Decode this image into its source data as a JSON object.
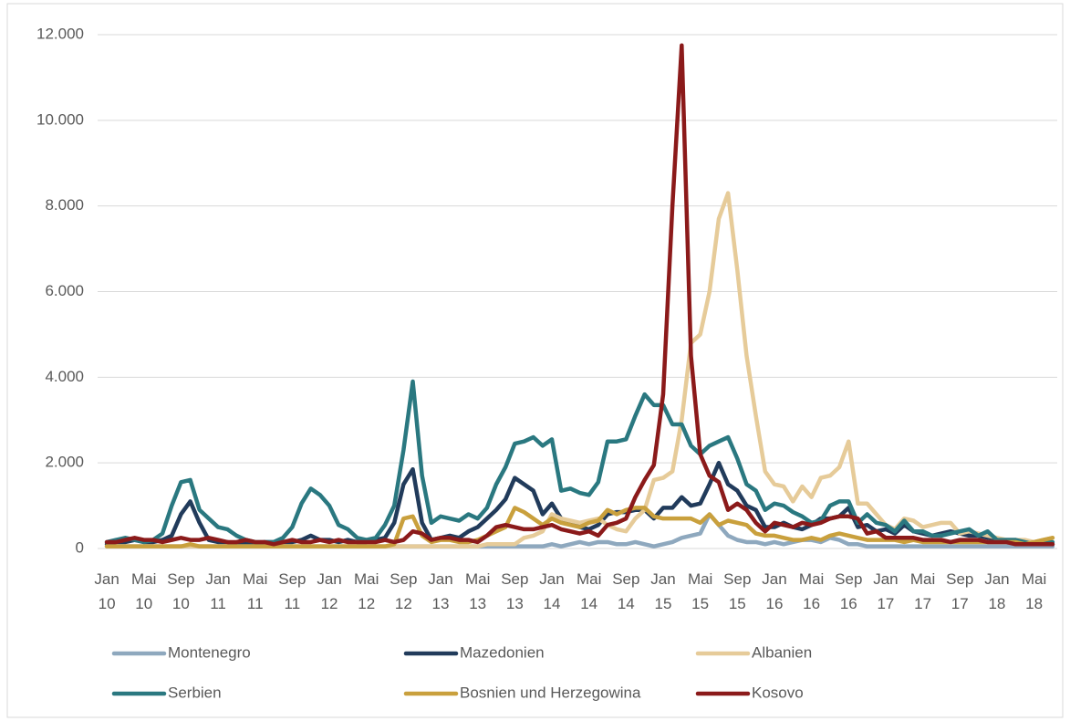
{
  "chart_data": {
    "type": "line",
    "categories": [
      "Jan 10",
      null,
      null,
      null,
      "Mai 10",
      null,
      null,
      null,
      "Sep 10",
      null,
      null,
      null,
      "Jan 11",
      null,
      null,
      null,
      "Mai 11",
      null,
      null,
      null,
      "Sep 11",
      null,
      null,
      null,
      "Jan 12",
      null,
      null,
      null,
      "Mai 12",
      null,
      null,
      null,
      "Sep 12",
      null,
      null,
      null,
      "Jan 13",
      null,
      null,
      null,
      "Mai 13",
      null,
      null,
      null,
      "Sep 13",
      null,
      null,
      null,
      "Jan 14",
      null,
      null,
      null,
      "Mai 14",
      null,
      null,
      null,
      "Sep 14",
      null,
      null,
      null,
      "Jan 15",
      null,
      null,
      null,
      "Mai 15",
      null,
      null,
      null,
      "Sep 15",
      null,
      null,
      null,
      "Jan 16",
      null,
      null,
      null,
      "Mai 16",
      null,
      null,
      null,
      "Sep 16",
      null,
      null,
      null,
      "Jan 17",
      null,
      null,
      null,
      "Mai 17",
      null,
      null,
      null,
      "Sep 17",
      null,
      null,
      null,
      "Jan 18",
      null,
      null,
      null,
      "Mai 18",
      null,
      null
    ],
    "ylim": [
      0,
      12000
    ],
    "yticks": [
      0,
      {
        "value": 2000,
        "label": "2.000"
      },
      {
        "value": 4000,
        "label": "4.000"
      },
      {
        "value": 6000,
        "label": "6.000"
      },
      {
        "value": 8000,
        "label": "8.000"
      },
      {
        "value": 10000,
        "label": "10.000"
      },
      {
        "value": 12000,
        "label": "12.000"
      }
    ],
    "grid": true,
    "series": [
      {
        "name": "Montenegro",
        "color": "#8ea8be",
        "values": [
          50,
          50,
          50,
          50,
          50,
          50,
          50,
          50,
          50,
          50,
          50,
          50,
          50,
          50,
          50,
          50,
          50,
          50,
          50,
          50,
          50,
          50,
          50,
          50,
          50,
          50,
          50,
          50,
          50,
          50,
          50,
          50,
          50,
          50,
          50,
          50,
          50,
          50,
          50,
          50,
          50,
          50,
          50,
          50,
          50,
          50,
          50,
          50,
          100,
          50,
          100,
          150,
          100,
          150,
          150,
          100,
          100,
          150,
          100,
          50,
          100,
          150,
          250,
          300,
          350,
          800,
          550,
          300,
          200,
          150,
          150,
          100,
          150,
          100,
          150,
          200,
          200,
          150,
          250,
          200,
          100,
          100,
          50,
          50,
          50,
          50,
          50,
          50,
          50,
          50,
          50,
          50,
          50,
          50,
          50,
          50,
          50,
          50,
          50,
          50,
          50,
          50,
          50
        ]
      },
      {
        "name": "Mazedonien",
        "color": "#213b5b",
        "values": [
          100,
          150,
          150,
          200,
          150,
          150,
          200,
          300,
          800,
          1100,
          600,
          200,
          150,
          150,
          100,
          100,
          100,
          150,
          150,
          150,
          150,
          200,
          300,
          200,
          200,
          150,
          200,
          150,
          150,
          200,
          250,
          600,
          1500,
          1850,
          600,
          200,
          250,
          300,
          250,
          400,
          500,
          700,
          900,
          1150,
          1650,
          1500,
          1350,
          800,
          1050,
          700,
          600,
          500,
          450,
          550,
          800,
          850,
          850,
          900,
          900,
          700,
          950,
          950,
          1200,
          1000,
          1050,
          1500,
          2000,
          1500,
          1350,
          1000,
          900,
          500,
          500,
          600,
          500,
          450,
          550,
          700,
          700,
          750,
          950,
          500,
          550,
          400,
          450,
          350,
          550,
          400,
          350,
          300,
          350,
          400,
          350,
          300,
          300,
          250,
          200,
          200,
          200,
          150,
          150,
          150,
          100
        ]
      },
      {
        "name": "Albanien",
        "color": "#e6cb99",
        "values": [
          50,
          50,
          50,
          50,
          50,
          50,
          50,
          50,
          50,
          50,
          50,
          50,
          50,
          50,
          50,
          50,
          50,
          50,
          50,
          50,
          50,
          50,
          50,
          50,
          50,
          50,
          50,
          50,
          50,
          50,
          50,
          50,
          50,
          50,
          50,
          50,
          50,
          50,
          50,
          50,
          50,
          100,
          100,
          100,
          100,
          250,
          300,
          400,
          800,
          700,
          650,
          600,
          650,
          700,
          550,
          450,
          400,
          700,
          900,
          1600,
          1650,
          1800,
          3000,
          4800,
          5000,
          6000,
          7700,
          8300,
          6500,
          4500,
          3100,
          1800,
          1500,
          1450,
          1100,
          1450,
          1200,
          1650,
          1700,
          1900,
          2500,
          1050,
          1050,
          800,
          550,
          450,
          700,
          650,
          500,
          550,
          600,
          600,
          350,
          400,
          350,
          300,
          250,
          200,
          200,
          200,
          150,
          200,
          250
        ]
      },
      {
        "name": "Serbien",
        "color": "#2a7880",
        "values": [
          150,
          200,
          250,
          200,
          150,
          200,
          350,
          1000,
          1550,
          1600,
          900,
          700,
          500,
          450,
          300,
          200,
          150,
          150,
          150,
          250,
          500,
          1050,
          1400,
          1250,
          1000,
          550,
          450,
          250,
          200,
          250,
          550,
          1000,
          2300,
          3900,
          1700,
          600,
          750,
          700,
          650,
          800,
          700,
          950,
          1500,
          1900,
          2450,
          2500,
          2600,
          2400,
          2550,
          1350,
          1400,
          1300,
          1250,
          1550,
          2500,
          2500,
          2550,
          3100,
          3600,
          3350,
          3350,
          2900,
          2900,
          2400,
          2200,
          2400,
          2500,
          2600,
          2100,
          1500,
          1350,
          900,
          1050,
          1000,
          850,
          750,
          600,
          650,
          1000,
          1100,
          1100,
          600,
          800,
          600,
          550,
          400,
          650,
          400,
          400,
          300,
          300,
          350,
          400,
          450,
          300,
          400,
          200,
          200,
          200,
          150,
          100,
          150,
          150
        ]
      },
      {
        "name": "Bosnien und Herzegowina",
        "color": "#c9a03d",
        "values": [
          50,
          50,
          50,
          50,
          50,
          50,
          50,
          50,
          50,
          100,
          50,
          50,
          50,
          50,
          50,
          50,
          50,
          50,
          50,
          50,
          50,
          50,
          50,
          50,
          50,
          50,
          50,
          50,
          50,
          50,
          50,
          100,
          700,
          750,
          300,
          150,
          200,
          200,
          150,
          150,
          200,
          300,
          400,
          500,
          950,
          850,
          700,
          550,
          700,
          600,
          550,
          500,
          600,
          650,
          900,
          800,
          900,
          950,
          950,
          750,
          700,
          700,
          700,
          700,
          600,
          800,
          550,
          650,
          600,
          550,
          350,
          300,
          300,
          250,
          200,
          200,
          250,
          200,
          300,
          350,
          300,
          250,
          200,
          200,
          200,
          200,
          150,
          200,
          150,
          150,
          150,
          150,
          150,
          150,
          150,
          150,
          150,
          150,
          150,
          100,
          150,
          200,
          250
        ]
      },
      {
        "name": "Kosovo",
        "color": "#8b1a1a",
        "values": [
          150,
          150,
          200,
          250,
          200,
          200,
          150,
          200,
          250,
          200,
          200,
          250,
          200,
          150,
          150,
          200,
          150,
          150,
          100,
          150,
          200,
          150,
          150,
          200,
          150,
          200,
          150,
          150,
          150,
          150,
          200,
          150,
          200,
          400,
          350,
          200,
          250,
          250,
          200,
          200,
          150,
          300,
          500,
          550,
          500,
          450,
          450,
          500,
          550,
          450,
          400,
          350,
          400,
          300,
          550,
          600,
          700,
          1200,
          1600,
          1950,
          3600,
          8000,
          11750,
          4500,
          2200,
          1700,
          1550,
          900,
          1050,
          900,
          600,
          400,
          600,
          550,
          500,
          600,
          550,
          600,
          700,
          750,
          750,
          700,
          350,
          400,
          250,
          250,
          250,
          250,
          200,
          200,
          200,
          150,
          200,
          200,
          200,
          150,
          150,
          150,
          100,
          100,
          100,
          100,
          100
        ]
      }
    ]
  }
}
